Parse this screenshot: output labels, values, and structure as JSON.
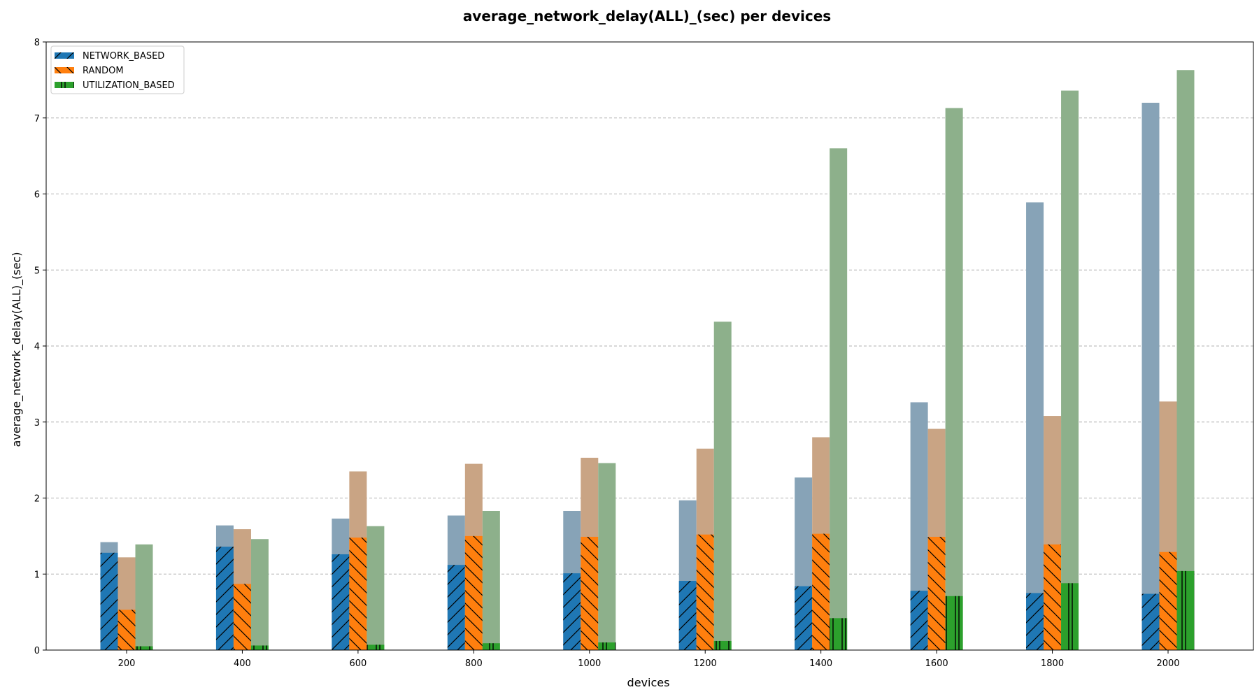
{
  "chart_data": {
    "type": "bar",
    "title": "average_network_delay(ALL)_(sec) per devices",
    "xlabel": "devices",
    "ylabel": "average_network_delay(ALL)_(sec)",
    "ylim": [
      0,
      8
    ],
    "yticks": [
      "0",
      "1",
      "2",
      "3",
      "4",
      "5",
      "6",
      "7",
      "8"
    ],
    "grid": "horizontal dashed",
    "legend_placement": "top-left",
    "categories": [
      "200",
      "400",
      "600",
      "800",
      "1000",
      "1200",
      "1400",
      "1600",
      "1800",
      "2000"
    ],
    "series": [
      {
        "name": "NETWORK_BASED",
        "color": "#1f77b4",
        "background_color": "#87a3b7",
        "hatch": "forward-slash",
        "values": [
          1.28,
          1.36,
          1.26,
          1.12,
          1.01,
          0.91,
          0.84,
          0.78,
          0.75,
          0.74
        ],
        "background_values": [
          1.42,
          1.64,
          1.73,
          1.77,
          1.83,
          1.97,
          2.27,
          3.26,
          5.89,
          7.2
        ]
      },
      {
        "name": "RANDOM",
        "color": "#ff7f0e",
        "background_color": "#c9a484",
        "hatch": "back-slash",
        "values": [
          0.53,
          0.87,
          1.48,
          1.5,
          1.49,
          1.52,
          1.53,
          1.49,
          1.39,
          1.29
        ],
        "background_values": [
          1.22,
          1.59,
          2.35,
          2.45,
          2.53,
          2.65,
          2.8,
          2.91,
          3.08,
          3.27
        ]
      },
      {
        "name": "UTILIZATION_BASED",
        "color": "#2ca02c",
        "background_color": "#8db08b",
        "hatch": "vertical",
        "values": [
          0.05,
          0.06,
          0.07,
          0.09,
          0.1,
          0.12,
          0.42,
          0.71,
          0.88,
          1.04
        ],
        "background_values": [
          1.39,
          1.46,
          1.63,
          1.83,
          2.46,
          4.32,
          6.6,
          7.13,
          7.36,
          7.63
        ]
      }
    ]
  }
}
